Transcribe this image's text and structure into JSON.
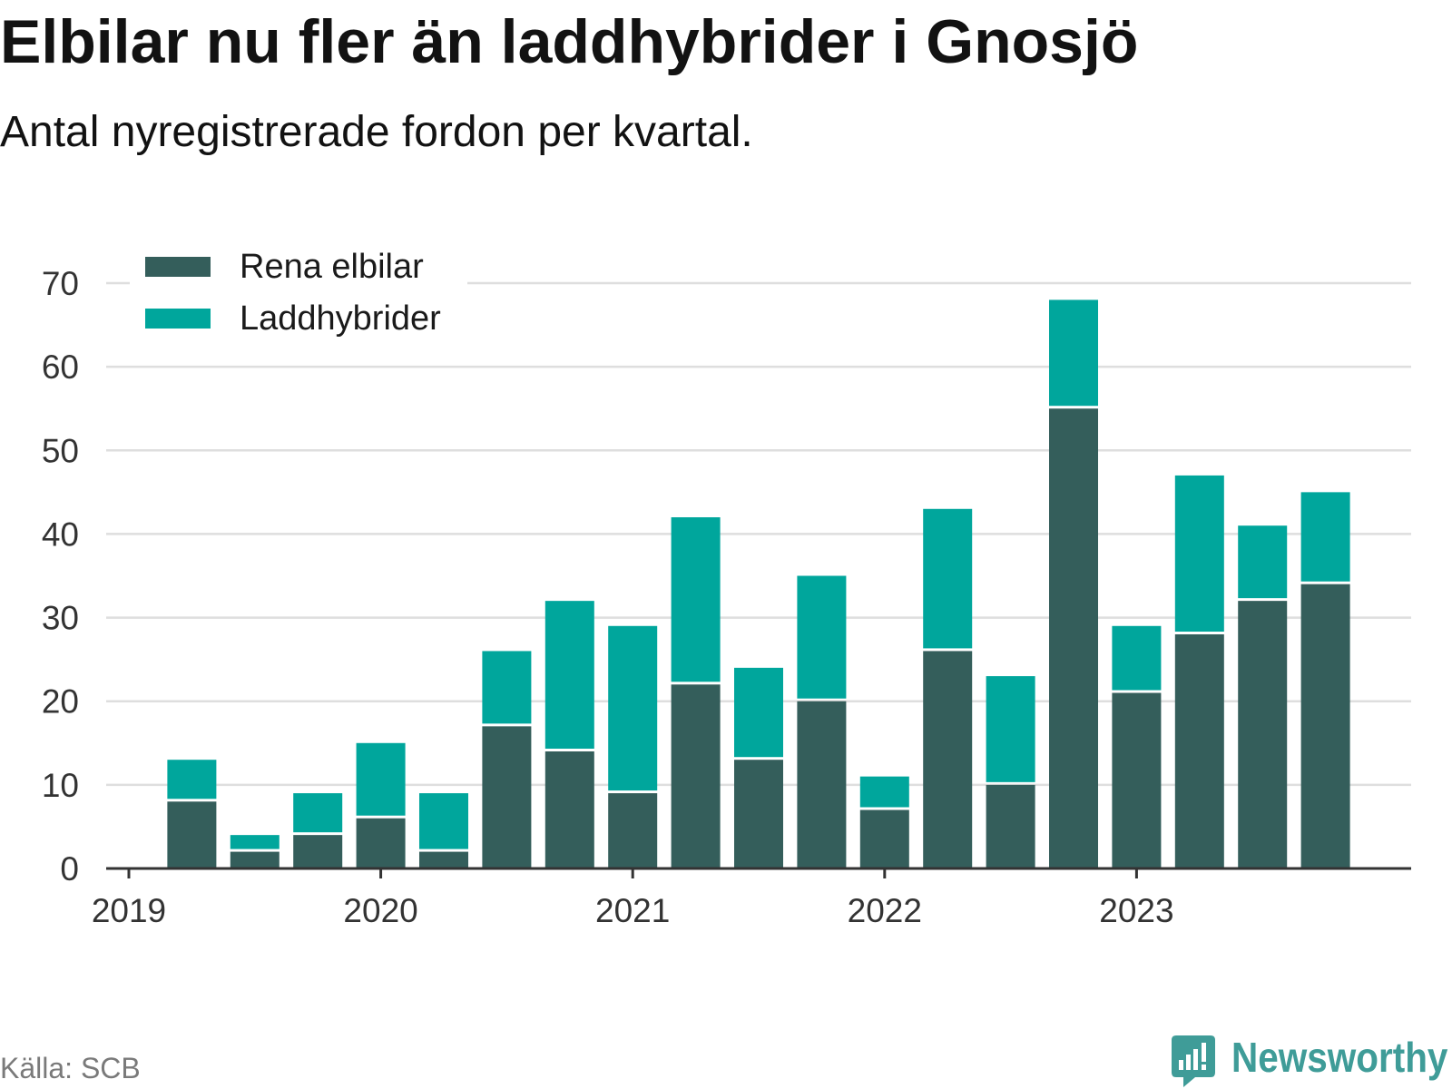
{
  "chart_data": {
    "type": "bar",
    "stacked": true,
    "title": "Elbilar nu fler än laddhybrider i Gnosjö",
    "subtitle": "Antal nyregistrerade fordon per kvartal.",
    "x": [
      2019.25,
      2019.5,
      2019.75,
      2020.0,
      2020.25,
      2020.5,
      2020.75,
      2021.0,
      2021.25,
      2021.5,
      2021.75,
      2022.0,
      2022.25,
      2022.5,
      2022.75,
      2023.0,
      2023.25,
      2023.5,
      2023.75
    ],
    "series": [
      {
        "name": "Rena elbilar",
        "color": "#345e5b",
        "values": [
          8,
          2,
          4,
          6,
          2,
          17,
          14,
          9,
          22,
          13,
          20,
          7,
          26,
          10,
          55,
          21,
          28,
          32,
          34
        ]
      },
      {
        "name": "Laddhybrider",
        "color": "#00a69c",
        "values": [
          5,
          2,
          5,
          9,
          7,
          9,
          18,
          20,
          20,
          11,
          15,
          4,
          17,
          13,
          13,
          8,
          19,
          9,
          11
        ]
      }
    ],
    "xlim": [
      2018.91,
      2024.09
    ],
    "ylim": [
      0,
      70
    ],
    "xticks": [
      2019,
      2020,
      2021,
      2022,
      2023
    ],
    "yticks": [
      0,
      10,
      20,
      30,
      40,
      50,
      60,
      70
    ],
    "grid": true,
    "legend": "top-left"
  },
  "footer": {
    "source": "Källa: SCB",
    "brand": "Newsworthy"
  },
  "colors": {
    "grid": "#dedede",
    "axis": "#333333",
    "brand": "#3f9c98",
    "logo_glyph": "#ffffff"
  }
}
